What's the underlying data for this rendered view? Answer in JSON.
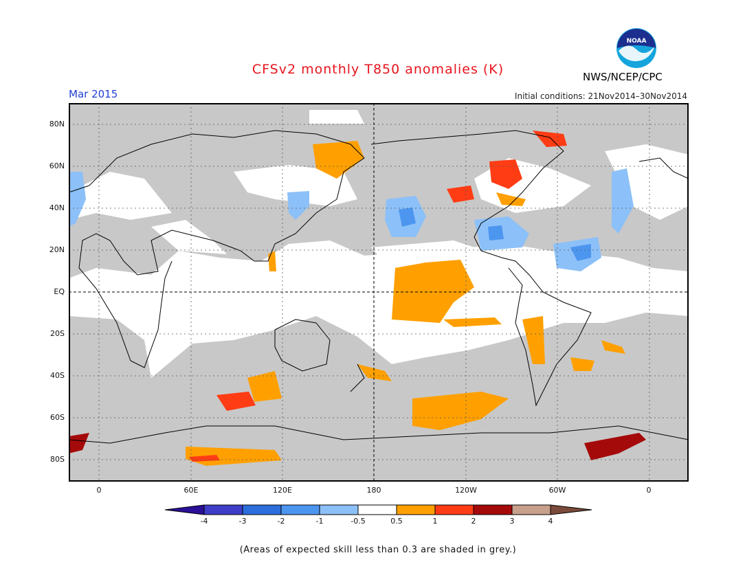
{
  "header": {
    "title": "CFSv2 monthly T850 anomalies (K)",
    "period": "Mar 2015",
    "initial_conditions": "Initial conditions: 21Nov2014–30Nov2014",
    "agency": "NWS/NCEP/CPC",
    "logo_text": "NOAA",
    "logo_icon": "noaa-logo"
  },
  "map": {
    "lat_labels": [
      "80N",
      "60N",
      "40N",
      "20N",
      "EQ",
      "20S",
      "40S",
      "60S",
      "80S"
    ],
    "lon_labels": [
      "0",
      "60E",
      "120E",
      "180",
      "120W",
      "60W",
      "0"
    ],
    "colors": {
      "low_skill": "#c8c8c8",
      "neutral": "#ffffff",
      "coast": "#000000"
    }
  },
  "legend": {
    "ticks": [
      "-4",
      "-3",
      "-2",
      "-1",
      "-0.5",
      "0.5",
      "1",
      "2",
      "3",
      "4"
    ],
    "colors": [
      "#2a0f97",
      "#3e3ec8",
      "#2d6edd",
      "#4c96f0",
      "#8cc0f8",
      "#ffffff",
      "#ffa000",
      "#ff3c14",
      "#a50a0a",
      "#c8a08c",
      "#7a4a3a"
    ]
  },
  "footnote": "(Areas of expected skill less than 0.3 are shaded in grey.)"
}
